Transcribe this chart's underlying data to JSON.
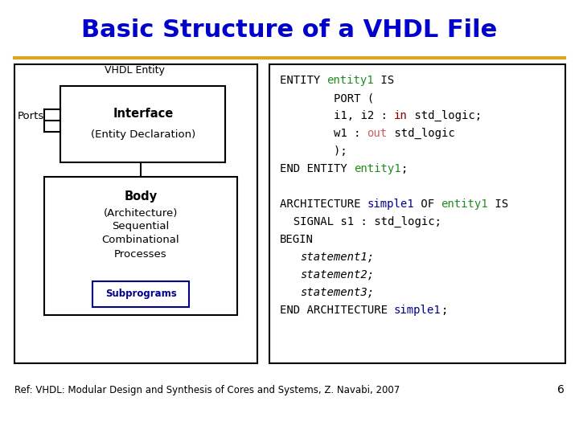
{
  "title": "Basic Structure of a VHDL File",
  "title_color": "#0000CC",
  "title_fontsize": 22,
  "separator_color": "#DAA520",
  "bg_color": "#FFFFFF",
  "footnote": "Ref: VHDL: Modular Design and Synthesis of Cores and Systems, Z. Navabi, 2007",
  "footnote_fontsize": 8.5,
  "page_num": "6",
  "code_fontsize": 10,
  "entity_block": [
    [
      {
        "t": "ENTITY ",
        "c": "#000000"
      },
      {
        "t": "entity1",
        "c": "#228B22"
      },
      {
        "t": " IS",
        "c": "#000000"
      }
    ],
    [
      {
        "t": "        PORT (",
        "c": "#000000"
      }
    ],
    [
      {
        "t": "        i1, i2 : ",
        "c": "#000000"
      },
      {
        "t": "in",
        "c": "#8B0000"
      },
      {
        "t": " std_logic;",
        "c": "#000000"
      }
    ],
    [
      {
        "t": "        w1 : ",
        "c": "#000000"
      },
      {
        "t": "out",
        "c": "#CD5C5C"
      },
      {
        "t": " std_logic",
        "c": "#000000"
      }
    ],
    [
      {
        "t": "        );",
        "c": "#000000"
      }
    ],
    [
      {
        "t": "END ENTITY ",
        "c": "#000000"
      },
      {
        "t": "entity1",
        "c": "#228B22"
      },
      {
        "t": ";",
        "c": "#000000"
      }
    ]
  ],
  "arch_block": [
    [
      {
        "t": "ARCHITECTURE ",
        "c": "#000000"
      },
      {
        "t": "simple1",
        "c": "#00008B"
      },
      {
        "t": " OF ",
        "c": "#000000"
      },
      {
        "t": "entity1",
        "c": "#228B22"
      },
      {
        "t": " IS",
        "c": "#000000"
      }
    ],
    [
      {
        "t": "  SIGNAL s1 : std_logic;",
        "c": "#000000"
      }
    ],
    [
      {
        "t": "BEGIN",
        "c": "#000000"
      }
    ],
    [
      {
        "t": "   ",
        "c": "#000000"
      },
      {
        "t": "statement1;",
        "c": "#000000",
        "italic": true
      }
    ],
    [
      {
        "t": "   ",
        "c": "#000000"
      },
      {
        "t": "statement2;",
        "c": "#000000",
        "italic": true
      }
    ],
    [
      {
        "t": "   ",
        "c": "#000000"
      },
      {
        "t": "statement3;",
        "c": "#000000",
        "italic": true
      }
    ],
    [
      {
        "t": "END ARCHITECTURE ",
        "c": "#000000"
      },
      {
        "t": "simple1",
        "c": "#00008B"
      },
      {
        "t": ";",
        "c": "#000000"
      }
    ]
  ]
}
